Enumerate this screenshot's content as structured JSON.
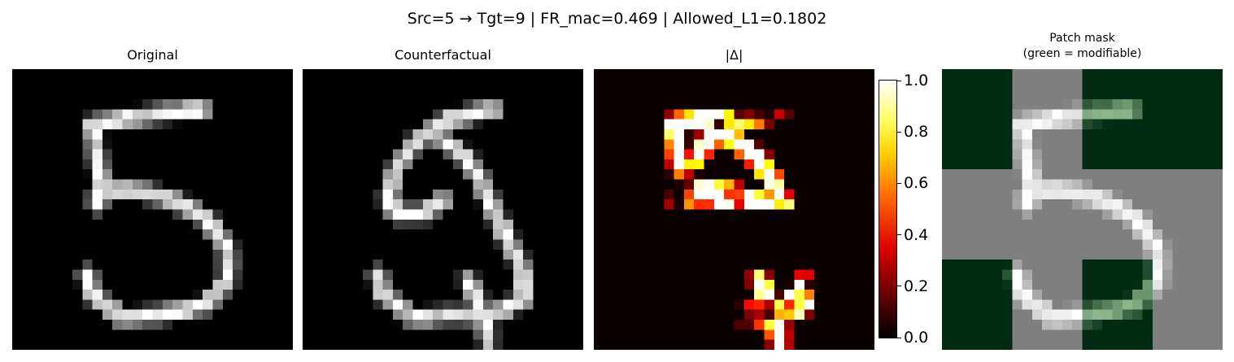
{
  "suptitle": "Src=5 → Tgt=9 | FR_mac=0.469 | Allowed_L1=0.1802",
  "panels": {
    "original_title": "Original",
    "counterfactual_title": "Counterfactual",
    "delta_title": "|Δ|",
    "mask_title_line1": "Patch mask",
    "mask_title_line2": "(green = modifiable)"
  },
  "chart_data": [
    {
      "type": "heatmap",
      "title": "Original",
      "colormap": "gray",
      "grid_size": [
        28,
        28
      ],
      "description_cells": "MNIST-style digit 5"
    },
    {
      "type": "heatmap",
      "title": "Counterfactual",
      "colormap": "gray",
      "grid_size": [
        28,
        28
      ]
    },
    {
      "type": "heatmap",
      "title": "|Δ|",
      "colormap": "hot",
      "grid_size": [
        28,
        28
      ],
      "colorbar": {
        "ticks": [
          "0.0",
          "0.2",
          "0.4",
          "0.6",
          "0.8",
          "1.0"
        ],
        "range": [
          0.0,
          1.0
        ]
      }
    },
    {
      "type": "heatmap",
      "title": "Patch mask\n(green = modifiable)",
      "grid_size": [
        28,
        28
      ],
      "mask_patches": [
        [
          1,
          0,
          1,
          1
        ],
        [
          0,
          0,
          0,
          0
        ],
        [
          1,
          0,
          1,
          0
        ]
      ]
    }
  ],
  "colors": {
    "green_mask": "#002a12",
    "gray_mask": "#7f7f7f"
  }
}
